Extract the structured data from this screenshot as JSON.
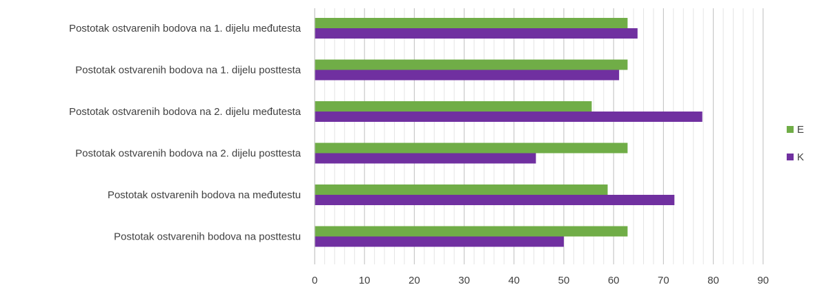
{
  "chart_data": {
    "type": "bar",
    "orientation": "horizontal",
    "categories": [
      "Postotak ostvarenih bodova na 1. dijelu međutesta",
      "Postotak ostvarenih bodova na 1. dijelu posttesta",
      "Postotak ostvarenih bodova na 2. dijelu međutesta",
      "Postotak ostvarenih bodova na 2. dijelu posttesta",
      "Postotak ostvarenih bodova na međutestu",
      "Postotak ostvarenih bodova na posttestu"
    ],
    "series": [
      {
        "name": "E",
        "color": "#70ad47",
        "values": [
          62.8,
          62.8,
          55.6,
          62.8,
          58.8,
          62.8
        ]
      },
      {
        "name": "K",
        "color": "#7030a0",
        "values": [
          64.8,
          61.1,
          77.8,
          44.4,
          72.2,
          50.0
        ]
      }
    ],
    "xlim": [
      0,
      90
    ],
    "x_major_ticks": [
      "0",
      "10",
      "20",
      "30",
      "40",
      "50",
      "60",
      "70",
      "80",
      "90"
    ],
    "x_major_step": 10,
    "x_minor_step": 2,
    "grid": true,
    "legend_position": "right",
    "title": "",
    "xlabel": "",
    "ylabel": ""
  }
}
